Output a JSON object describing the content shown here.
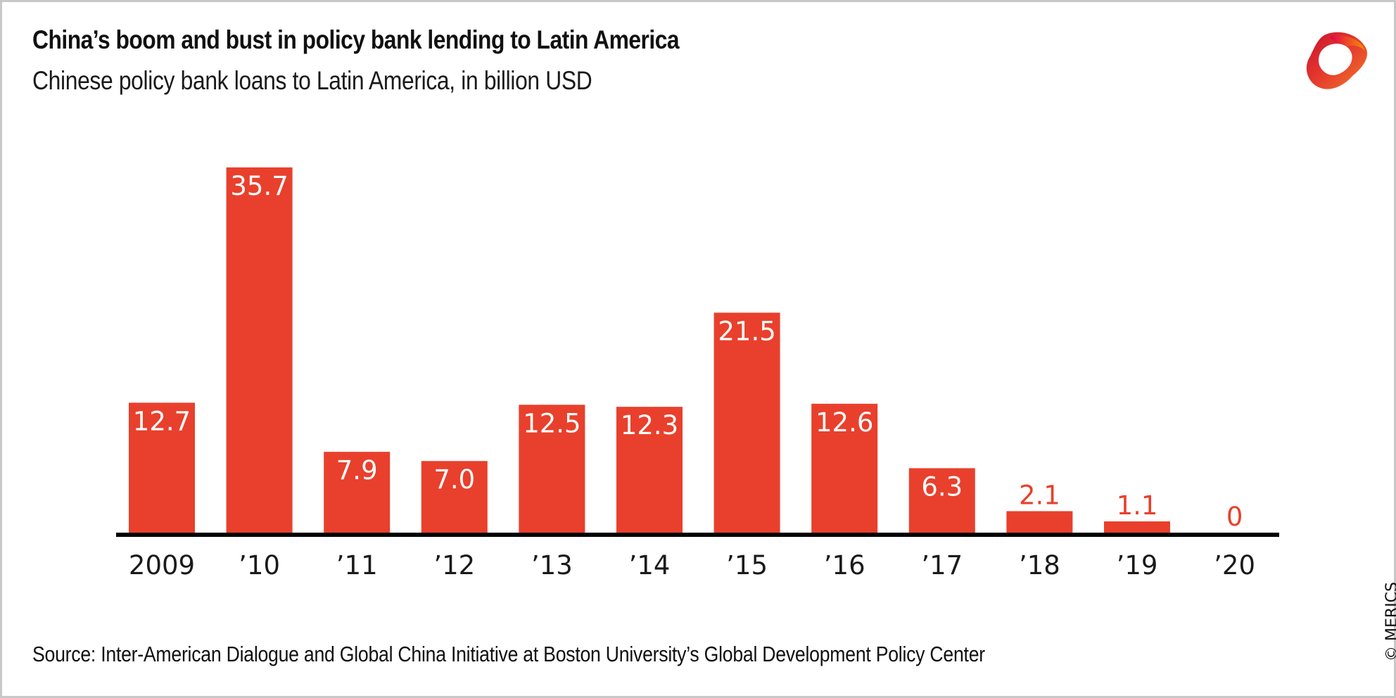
{
  "chart_data": {
    "type": "bar",
    "title": "China’s boom and bust in policy bank lending to Latin America",
    "subtitle": "Chinese policy bank loans to Latin America, in billion USD",
    "xlabel": "",
    "ylabel": "",
    "categories": [
      "2009",
      "’10",
      "’11",
      "’12",
      "’13",
      "’14",
      "’15",
      "’16",
      "’17",
      "’18",
      "’19",
      "’20"
    ],
    "values": [
      12.7,
      35.7,
      7.9,
      7.0,
      12.5,
      12.3,
      21.5,
      12.6,
      6.3,
      2.1,
      1.1,
      0
    ],
    "data_labels": [
      "12.7",
      "35.7",
      "7.9",
      "7.0",
      "12.5",
      "12.3",
      "21.5",
      "12.6",
      "6.3",
      "2.1",
      "1.1",
      "0"
    ],
    "ylim": [
      0,
      36
    ],
    "grid": false,
    "legend": "none",
    "source": "Source: Inter-American Dialogue and Global China Initiative at Boston University’s Global Development Policy Center"
  },
  "colors": {
    "bar": "#e8402c",
    "label_inside": "#ffffff",
    "label_outside": "#e8402c",
    "axis": "#000000"
  },
  "branding": {
    "copyright": "© MERICS",
    "logo_icon": "merics-ribbon-logo"
  }
}
